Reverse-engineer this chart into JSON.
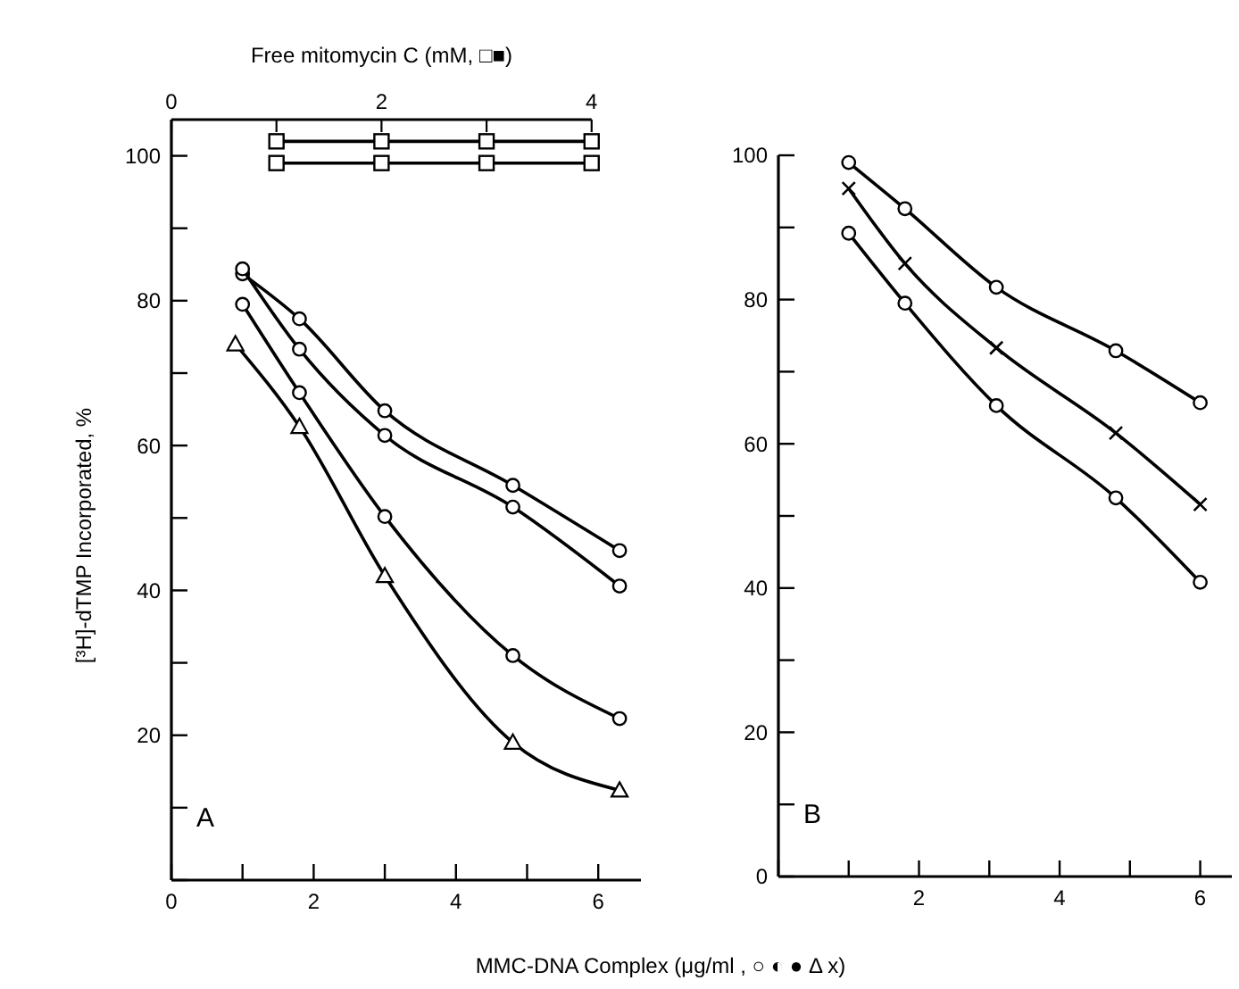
{
  "chart_data": [
    {
      "type": "line",
      "x2label": "Free mitomycin C (mM, □■)",
      "ylabel": "[³H]-dTMP Incorporated,  %",
      "xlabel": "MMC-DNA Complex (μg/ml , ○ ◐ ● Δ x)",
      "annotations": [
        "A"
      ],
      "xlim": [
        0,
        6.6
      ],
      "ylim": [
        0,
        105
      ],
      "x2lim": [
        0,
        4
      ],
      "xticks": [
        0,
        {
          "value": 1,
          "label": null
        },
        2,
        {
          "value": 3,
          "label": null
        },
        4,
        {
          "value": 5,
          "label": null
        },
        6
      ],
      "x2ticks": [
        0,
        {
          "value": 1,
          "label": null
        },
        2,
        {
          "value": 3,
          "label": null
        },
        4
      ],
      "yticks": [
        {
          "value": 0,
          "label": null
        },
        {
          "value": 10,
          "label": null
        },
        20,
        {
          "value": 30,
          "label": null
        },
        40,
        {
          "value": 50,
          "label": null
        },
        60,
        {
          "value": 70,
          "label": null
        },
        80,
        {
          "value": 90,
          "label": null
        },
        100
      ],
      "line_style": "solid",
      "series": [
        {
          "x": [
            1,
            1.8,
            3,
            4.8,
            6.3
          ],
          "values": [
            83.7,
            77.5,
            64.8,
            54.5,
            45.5
          ],
          "marker": "circle",
          "color": "#000000"
        },
        {
          "x": [
            1,
            1.8,
            3,
            4.8,
            6.3
          ],
          "values": [
            84.4,
            73.3,
            61.4,
            51.5,
            40.6
          ],
          "marker": "circle",
          "color": "#000000"
        },
        {
          "x": [
            1,
            1.8,
            3,
            4.8,
            6.3
          ],
          "values": [
            79.5,
            67.3,
            50.2,
            31,
            22.3
          ],
          "marker": "circle",
          "color": "#000000"
        },
        {
          "x": [
            0.9,
            1.8,
            3,
            4.8,
            6.3
          ],
          "values": [
            74,
            62.6,
            42,
            19,
            12.4
          ],
          "marker": "triangle",
          "color": "#000000"
        },
        {
          "x": [
            1,
            2,
            3,
            4
          ],
          "values": [
            102,
            102,
            102,
            102
          ],
          "axis": "x2",
          "marker": "square",
          "color": "#000000"
        },
        {
          "x": [
            1,
            2,
            3,
            4
          ],
          "values": [
            99,
            99,
            99,
            99
          ],
          "axis": "x2",
          "marker": "square",
          "color": "#000000"
        }
      ]
    },
    {
      "type": "line",
      "annotations": [
        "B"
      ],
      "xlim": [
        0,
        6.45
      ],
      "ylim": [
        0,
        100
      ],
      "xticks": [
        {
          "value": 0,
          "label": null
        },
        {
          "value": 1,
          "label": null
        },
        2,
        {
          "value": 3,
          "label": null
        },
        4,
        {
          "value": 5,
          "label": null
        },
        6
      ],
      "yticks": [
        0,
        {
          "value": 10,
          "label": null
        },
        20,
        {
          "value": 30,
          "label": null
        },
        40,
        {
          "value": 50,
          "label": null
        },
        60,
        {
          "value": 70,
          "label": null
        },
        80,
        {
          "value": 90,
          "label": null
        },
        100
      ],
      "line_style": "solid",
      "series": [
        {
          "x": [
            1,
            1.8,
            3.1,
            4.8,
            6
          ],
          "values": [
            99,
            92.6,
            81.7,
            72.9,
            65.7
          ],
          "marker": "circle",
          "color": "#000000"
        },
        {
          "x": [
            1,
            1.8,
            3.1,
            4.8,
            6
          ],
          "values": [
            95.4,
            85,
            73.3,
            61.5,
            51.6
          ],
          "marker": "cross",
          "color": "#000000"
        },
        {
          "x": [
            1,
            1.8,
            3.1,
            4.8,
            6
          ],
          "values": [
            89.2,
            79.5,
            65.3,
            52.5,
            40.8
          ],
          "marker": "circle",
          "color": "#000000"
        }
      ]
    }
  ]
}
